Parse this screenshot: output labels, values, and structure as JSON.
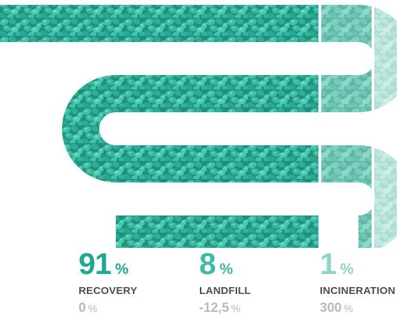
{
  "chart_data": {
    "type": "bar",
    "categories": [
      "RECOVERY",
      "LANDFILL",
      "INCINERATION"
    ],
    "values": [
      91,
      8,
      1
    ],
    "unit": "%",
    "changes": [
      "0",
      "-12,5",
      "300"
    ],
    "change_unit": "%",
    "colors": {
      "recovery": "#1fa892",
      "landfill": "#3cbaa4",
      "incineration": "#8fd4c7"
    }
  },
  "stats": [
    {
      "value": "91",
      "unit": "%",
      "label": "RECOVERY",
      "change": "0",
      "change_unit": "%",
      "color": "#1fa892"
    },
    {
      "value": "8",
      "unit": "%",
      "label": "LANDFILL",
      "change": "-12,5",
      "change_unit": "%",
      "color": "#3cbaa4"
    },
    {
      "value": "1",
      "unit": "%",
      "label": "INCINERATION",
      "change": "300",
      "change_unit": "%",
      "color": "#8fd4c7"
    }
  ],
  "visual": {
    "granule_color": "#33b9a0",
    "granule_light": "#6fd3c0",
    "granule_dark": "#1b7f6d"
  }
}
